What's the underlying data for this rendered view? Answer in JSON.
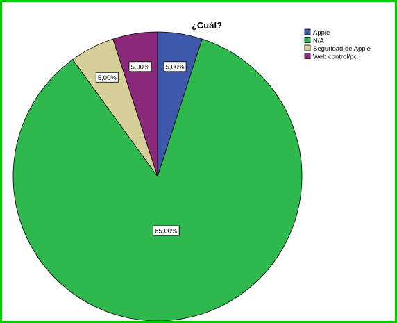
{
  "chart_data": {
    "type": "pie",
    "title": "¿Cuál?",
    "categories": [
      "Apple",
      "N/A",
      "Seguridad de Apple",
      "Web control/pc"
    ],
    "values": [
      5.0,
      85.0,
      5.0,
      5.0
    ],
    "data_labels": [
      "5,00%",
      "85,00%",
      "5,00%",
      "5,00%"
    ],
    "colors": [
      "#3e58ac",
      "#2eb84d",
      "#d6cf9a",
      "#8b2a7a"
    ],
    "start_angle_deg": 0,
    "direction": "clockwise",
    "legend_position": "top-right"
  }
}
